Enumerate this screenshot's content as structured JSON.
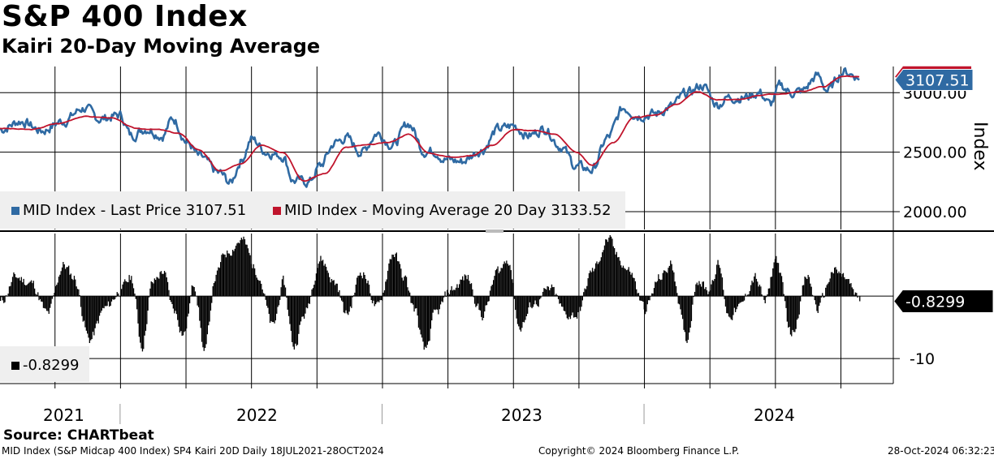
{
  "header": {
    "title": "S&P 400 Index",
    "subtitle": "Kairi 20-Day Moving Average"
  },
  "colors": {
    "price": "#2f6aa3",
    "moving_average": "#c0142c",
    "kairi": "#000000",
    "legend_bg": "#efefef"
  },
  "chart_data": [
    {
      "type": "line",
      "panel": "top",
      "ylabel": "Index",
      "ylim": [
        1850,
        3220
      ],
      "yticks": [
        2000,
        2500,
        3000
      ],
      "ytick_labels": [
        "2000.00",
        "2500.00",
        "3000.00"
      ],
      "last_price_label": "3107.51",
      "x_range": [
        "2021-07-18",
        "2024-10-28"
      ],
      "series": [
        {
          "name": "MID Index - Last Price",
          "legend": "MID Index - Last Price 3107.51",
          "last_value": 3107.51,
          "x": [
            2021.54,
            2021.62,
            2021.7,
            2021.78,
            2021.86,
            2021.92,
            2022.0,
            2022.04,
            2022.1,
            2022.16,
            2022.2,
            2022.26,
            2022.3,
            2022.38,
            2022.42,
            2022.46,
            2022.5,
            2022.56,
            2022.62,
            2022.66,
            2022.72,
            2022.76,
            2022.82,
            2022.86,
            2022.92,
            2022.98,
            2023.04,
            2023.1,
            2023.16,
            2023.2,
            2023.24,
            2023.3,
            2023.38,
            2023.44,
            2023.5,
            2023.56,
            2023.62,
            2023.68,
            2023.74,
            2023.8,
            2023.86,
            2023.92,
            2023.98,
            2024.04,
            2024.1,
            2024.16,
            2024.22,
            2024.28,
            2024.32,
            2024.38,
            2024.44,
            2024.48,
            2024.52,
            2024.56,
            2024.6,
            2024.66,
            2024.7,
            2024.76,
            2024.8,
            2024.82
          ],
          "y": [
            2690,
            2760,
            2680,
            2760,
            2870,
            2780,
            2810,
            2640,
            2700,
            2640,
            2780,
            2570,
            2460,
            2320,
            2240,
            2430,
            2610,
            2500,
            2470,
            2260,
            2250,
            2380,
            2580,
            2620,
            2500,
            2660,
            2560,
            2740,
            2510,
            2510,
            2440,
            2420,
            2520,
            2690,
            2720,
            2640,
            2700,
            2550,
            2380,
            2350,
            2620,
            2870,
            2810,
            2820,
            2880,
            2990,
            3060,
            2900,
            2960,
            2960,
            3000,
            2900,
            3060,
            3000,
            3010,
            3140,
            3020,
            3180,
            3150,
            3107.51
          ]
        },
        {
          "name": "MID Index - Moving Average 20 Day",
          "legend": "MID Index - Moving Average 20 Day 3133.52",
          "last_value": 3133.52,
          "x": [
            2021.54,
            2021.66,
            2021.76,
            2021.86,
            2021.96,
            2022.06,
            2022.14,
            2022.22,
            2022.3,
            2022.38,
            2022.46,
            2022.54,
            2022.62,
            2022.7,
            2022.78,
            2022.86,
            2022.94,
            2023.02,
            2023.1,
            2023.18,
            2023.26,
            2023.34,
            2023.42,
            2023.5,
            2023.58,
            2023.66,
            2023.74,
            2023.8,
            2023.88,
            2023.96,
            2024.04,
            2024.12,
            2024.2,
            2024.28,
            2024.36,
            2024.44,
            2024.52,
            2024.6,
            2024.68,
            2024.76,
            2024.82
          ],
          "y": [
            2700,
            2690,
            2740,
            2800,
            2790,
            2700,
            2690,
            2660,
            2520,
            2340,
            2400,
            2560,
            2500,
            2260,
            2320,
            2540,
            2560,
            2580,
            2650,
            2490,
            2460,
            2470,
            2560,
            2690,
            2680,
            2650,
            2500,
            2390,
            2580,
            2790,
            2810,
            2900,
            3010,
            2940,
            2940,
            2980,
            2990,
            3010,
            3050,
            3140,
            3133.52
          ]
        }
      ]
    },
    {
      "type": "bar",
      "panel": "bottom",
      "name": "Kairi 20D",
      "legend": "-0.8299",
      "last_value": -0.8299,
      "last_value_label": "-0.8299",
      "ylim": [
        -14,
        10
      ],
      "yticks": [
        -10
      ],
      "ytick_labels": [
        "-10"
      ],
      "anchor_x": [
        2021.54,
        2021.6,
        2021.66,
        2021.72,
        2021.78,
        2021.82,
        2021.88,
        2021.94,
        2022.0,
        2022.04,
        2022.08,
        2022.12,
        2022.16,
        2022.2,
        2022.24,
        2022.28,
        2022.32,
        2022.36,
        2022.4,
        2022.46,
        2022.52,
        2022.58,
        2022.62,
        2022.66,
        2022.7,
        2022.76,
        2022.82,
        2022.86,
        2022.92,
        2022.98,
        2023.04,
        2023.08,
        2023.12,
        2023.16,
        2023.2,
        2023.26,
        2023.32,
        2023.38,
        2023.44,
        2023.48,
        2023.52,
        2023.58,
        2023.64,
        2023.7,
        2023.74,
        2023.8,
        2023.86,
        2023.9,
        2023.94,
        2024.0,
        2024.06,
        2024.1,
        2024.16,
        2024.2,
        2024.24,
        2024.28,
        2024.32,
        2024.36,
        2024.42,
        2024.46,
        2024.5,
        2024.56,
        2024.62,
        2024.66,
        2024.72,
        2024.76,
        2024.82
      ],
      "anchor_y": [
        -1,
        3,
        2,
        -3,
        5,
        3,
        -7,
        -2,
        1,
        3,
        -8,
        2,
        4,
        -2,
        -6,
        2,
        -9,
        3,
        7,
        9,
        4,
        -5,
        2,
        -8,
        -3,
        6,
        2,
        -3,
        4,
        -2,
        7,
        3,
        -2,
        -9,
        -3,
        1,
        3,
        -3,
        4,
        6,
        -5,
        -1,
        1,
        -3,
        -3,
        4,
        9,
        6,
        4,
        -2,
        3,
        5,
        -7,
        3,
        1,
        5,
        -3,
        -2,
        3,
        -1,
        6,
        -6,
        3,
        -2,
        4,
        3,
        -0.8299
      ]
    }
  ],
  "x_axis": {
    "years": [
      "2021",
      "2022",
      "2023",
      "2024"
    ]
  },
  "footer": {
    "source": "Source: CHARTbeat",
    "left": "MID Index (S&P Midcap 400 Index) SP4 Kairi 20D  Daily 18JUL2021-28OCT2024",
    "center": "Copyright© 2024 Bloomberg Finance L.P.",
    "right": "28-Oct-2024 06:32:23"
  }
}
